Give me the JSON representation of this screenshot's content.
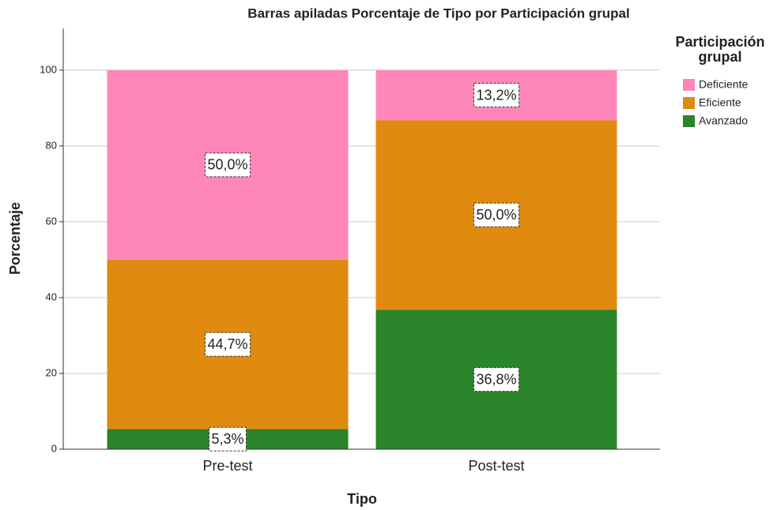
{
  "chart_data": {
    "type": "stacked_bar",
    "title": "Barras apiladas Porcentaje de Tipo por Participación grupal",
    "x_label": "Tipo",
    "y_label": "Porcentaje",
    "legend_title": "Participación grupal",
    "categories": [
      "Pre-test",
      "Post-test"
    ],
    "series": [
      {
        "name": "Avanzado",
        "color": "#2a842a",
        "values": [
          5.3,
          36.8
        ],
        "value_labels": [
          "5,3%",
          "36,8%"
        ]
      },
      {
        "name": "Eficiente",
        "color": "#e08a10",
        "values": [
          44.7,
          50.0
        ],
        "value_labels": [
          "44,7%",
          "50,0%"
        ]
      },
      {
        "name": "Deficiente",
        "color": "#ff86b8",
        "values": [
          50.0,
          13.2
        ],
        "value_labels": [
          "50,0%",
          "13,2%"
        ]
      }
    ],
    "ylim": [
      0,
      111
    ],
    "yticks": [
      0,
      20,
      40,
      60,
      80,
      100
    ],
    "grid": true,
    "legend": "right"
  }
}
